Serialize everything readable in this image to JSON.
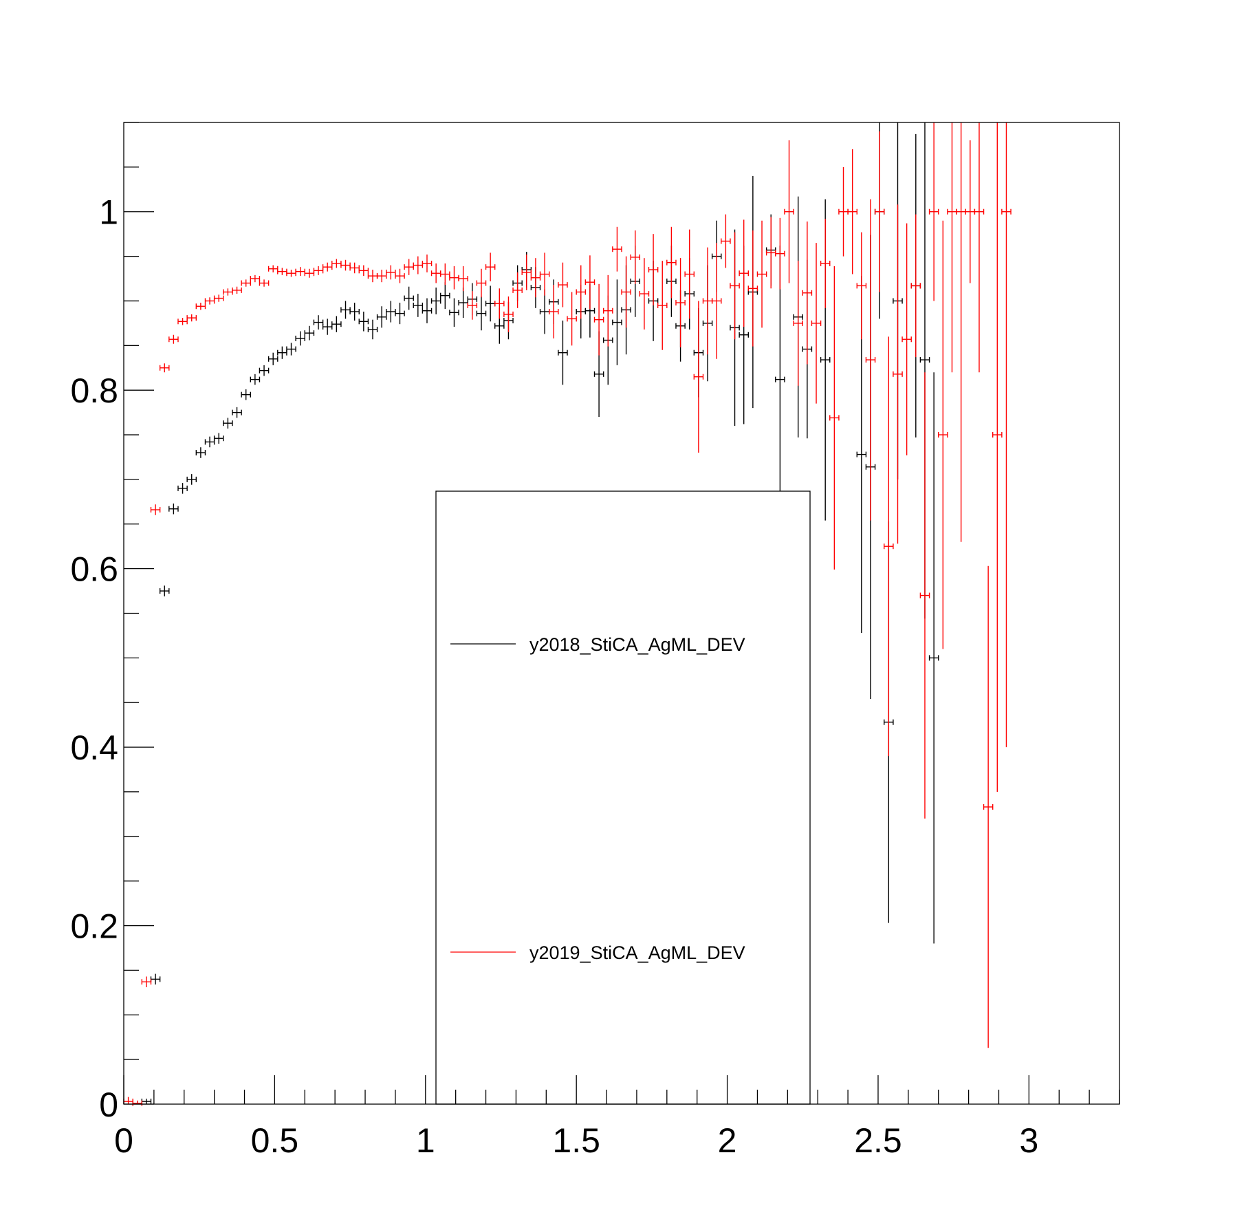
{
  "chart_data": {
    "type": "scatter",
    "title": "",
    "xlabel": "",
    "ylabel": "",
    "xlim": [
      0,
      3.3
    ],
    "ylim": [
      0,
      1.1
    ],
    "x_ticks": [
      0,
      0.5,
      1,
      1.5,
      2,
      2.5,
      3
    ],
    "x_tick_labels": [
      "0",
      "0.5",
      "1",
      "1.5",
      "2",
      "2.5",
      "3"
    ],
    "y_ticks": [
      0,
      0.2,
      0.4,
      0.6,
      0.8,
      1
    ],
    "y_tick_labels": [
      "0",
      "0.2",
      "0.4",
      "0.6",
      "0.8",
      "1"
    ],
    "bin_half_width": 0.015,
    "grid": false,
    "legend_position": "center",
    "series": [
      {
        "name": "y2018_StiCA_AgML_DEV",
        "color": "#000000",
        "points": [
          [
            0.075,
            0.003,
            0.003
          ],
          [
            0.105,
            0.14,
            0.006
          ],
          [
            0.135,
            0.575,
            0.006
          ],
          [
            0.165,
            0.667,
            0.006
          ],
          [
            0.195,
            0.69,
            0.006
          ],
          [
            0.225,
            0.7,
            0.006
          ],
          [
            0.255,
            0.73,
            0.006
          ],
          [
            0.285,
            0.742,
            0.006
          ],
          [
            0.315,
            0.746,
            0.006
          ],
          [
            0.345,
            0.763,
            0.006
          ],
          [
            0.375,
            0.775,
            0.006
          ],
          [
            0.405,
            0.795,
            0.006
          ],
          [
            0.435,
            0.812,
            0.006
          ],
          [
            0.465,
            0.822,
            0.006
          ],
          [
            0.495,
            0.835,
            0.007
          ],
          [
            0.525,
            0.842,
            0.007
          ],
          [
            0.555,
            0.846,
            0.007
          ],
          [
            0.585,
            0.858,
            0.008
          ],
          [
            0.615,
            0.864,
            0.008
          ],
          [
            0.645,
            0.876,
            0.008
          ],
          [
            0.675,
            0.871,
            0.009
          ],
          [
            0.705,
            0.874,
            0.009
          ],
          [
            0.735,
            0.89,
            0.01
          ],
          [
            0.765,
            0.888,
            0.01
          ],
          [
            0.795,
            0.877,
            0.011
          ],
          [
            0.825,
            0.868,
            0.011
          ],
          [
            0.855,
            0.882,
            0.012
          ],
          [
            0.885,
            0.888,
            0.012
          ],
          [
            0.915,
            0.886,
            0.012
          ],
          [
            0.945,
            0.903,
            0.013
          ],
          [
            0.975,
            0.895,
            0.013
          ],
          [
            1.005,
            0.889,
            0.014
          ],
          [
            1.035,
            0.9,
            0.015
          ],
          [
            1.065,
            0.906,
            0.015
          ],
          [
            1.095,
            0.887,
            0.016
          ],
          [
            1.125,
            0.898,
            0.017
          ],
          [
            1.155,
            0.902,
            0.018
          ],
          [
            1.185,
            0.886,
            0.019
          ],
          [
            1.215,
            0.897,
            0.02
          ],
          [
            1.245,
            0.872,
            0.02
          ],
          [
            1.275,
            0.878,
            0.021
          ],
          [
            1.305,
            0.92,
            0.02
          ],
          [
            1.335,
            0.935,
            0.02
          ],
          [
            1.365,
            0.915,
            0.023
          ],
          [
            1.395,
            0.888,
            0.025
          ],
          [
            1.425,
            0.899,
            0.025
          ],
          [
            1.455,
            0.842,
            0.036
          ],
          [
            1.515,
            0.888,
            0.03
          ],
          [
            1.545,
            0.889,
            0.03
          ],
          [
            1.575,
            0.818,
            0.048
          ],
          [
            1.605,
            0.856,
            0.05
          ],
          [
            1.635,
            0.876,
            0.048
          ],
          [
            1.665,
            0.89,
            0.05
          ],
          [
            1.695,
            0.922,
            0.04
          ],
          [
            1.755,
            0.9,
            0.045
          ],
          [
            1.815,
            0.922,
            0.04
          ],
          [
            1.845,
            0.872,
            0.04
          ],
          [
            1.875,
            0.908,
            0.04
          ],
          [
            1.905,
            0.842,
            0.05
          ],
          [
            1.935,
            0.875,
            0.065
          ],
          [
            1.965,
            0.95,
            0.04
          ],
          [
            2.025,
            0.87,
            0.11
          ],
          [
            2.055,
            0.862,
            0.1
          ],
          [
            2.085,
            0.91,
            0.13
          ],
          [
            2.145,
            0.957,
            0.04
          ],
          [
            2.175,
            0.812,
            0.15
          ],
          [
            2.235,
            0.882,
            0.135
          ],
          [
            2.265,
            0.846,
            0.1
          ],
          [
            2.325,
            0.834,
            0.18
          ],
          [
            2.445,
            0.728,
            0.2
          ],
          [
            2.475,
            0.714,
            0.26
          ],
          [
            2.505,
            1.0,
            0.12
          ],
          [
            2.535,
            0.428,
            0.225
          ],
          [
            2.565,
            0.9,
            0.2
          ],
          [
            2.625,
            0.917,
            0.17
          ],
          [
            2.655,
            0.834,
            0.29
          ],
          [
            2.685,
            0.5,
            0.32
          ]
        ]
      },
      {
        "name": "y2019_StiCA_AgML_DEV",
        "color": "#ff0000",
        "points": [
          [
            0.015,
            0.003,
            0.005
          ],
          [
            0.045,
            0.001,
            0.003
          ],
          [
            0.075,
            0.137,
            0.006
          ],
          [
            0.105,
            0.666,
            0.006
          ],
          [
            0.135,
            0.825,
            0.005
          ],
          [
            0.165,
            0.857,
            0.005
          ],
          [
            0.195,
            0.877,
            0.004
          ],
          [
            0.225,
            0.881,
            0.004
          ],
          [
            0.255,
            0.894,
            0.004
          ],
          [
            0.285,
            0.9,
            0.004
          ],
          [
            0.315,
            0.903,
            0.004
          ],
          [
            0.345,
            0.91,
            0.004
          ],
          [
            0.375,
            0.912,
            0.004
          ],
          [
            0.405,
            0.92,
            0.004
          ],
          [
            0.435,
            0.925,
            0.004
          ],
          [
            0.465,
            0.92,
            0.004
          ],
          [
            0.495,
            0.936,
            0.004
          ],
          [
            0.525,
            0.933,
            0.004
          ],
          [
            0.555,
            0.931,
            0.004
          ],
          [
            0.585,
            0.933,
            0.005
          ],
          [
            0.615,
            0.931,
            0.005
          ],
          [
            0.645,
            0.934,
            0.005
          ],
          [
            0.675,
            0.938,
            0.005
          ],
          [
            0.705,
            0.942,
            0.005
          ],
          [
            0.735,
            0.94,
            0.006
          ],
          [
            0.765,
            0.937,
            0.006
          ],
          [
            0.795,
            0.934,
            0.006
          ],
          [
            0.825,
            0.928,
            0.007
          ],
          [
            0.855,
            0.928,
            0.007
          ],
          [
            0.885,
            0.932,
            0.008
          ],
          [
            0.915,
            0.928,
            0.008
          ],
          [
            0.945,
            0.938,
            0.009
          ],
          [
            0.975,
            0.94,
            0.01
          ],
          [
            1.005,
            0.942,
            0.01
          ],
          [
            1.035,
            0.931,
            0.011
          ],
          [
            1.065,
            0.93,
            0.012
          ],
          [
            1.095,
            0.926,
            0.013
          ],
          [
            1.125,
            0.925,
            0.014
          ],
          [
            1.155,
            0.895,
            0.016
          ],
          [
            1.185,
            0.92,
            0.016
          ],
          [
            1.215,
            0.938,
            0.016
          ],
          [
            1.245,
            0.897,
            0.017
          ],
          [
            1.275,
            0.885,
            0.02
          ],
          [
            1.305,
            0.912,
            0.02
          ],
          [
            1.335,
            0.932,
            0.02
          ],
          [
            1.365,
            0.926,
            0.022
          ],
          [
            1.395,
            0.93,
            0.024
          ],
          [
            1.425,
            0.888,
            0.03
          ],
          [
            1.455,
            0.918,
            0.025
          ],
          [
            1.485,
            0.88,
            0.03
          ],
          [
            1.515,
            0.91,
            0.03
          ],
          [
            1.545,
            0.921,
            0.03
          ],
          [
            1.575,
            0.879,
            0.04
          ],
          [
            1.605,
            0.889,
            0.04
          ],
          [
            1.635,
            0.958,
            0.025
          ],
          [
            1.665,
            0.91,
            0.04
          ],
          [
            1.695,
            0.949,
            0.03
          ],
          [
            1.725,
            0.908,
            0.04
          ],
          [
            1.755,
            0.935,
            0.04
          ],
          [
            1.785,
            0.895,
            0.05
          ],
          [
            1.815,
            0.943,
            0.04
          ],
          [
            1.845,
            0.898,
            0.05
          ],
          [
            1.875,
            0.93,
            0.05
          ],
          [
            1.905,
            0.815,
            0.085
          ],
          [
            1.935,
            0.9,
            0.06
          ],
          [
            1.965,
            0.9,
            0.065
          ],
          [
            1.995,
            0.967,
            0.03
          ],
          [
            2.025,
            0.917,
            0.06
          ],
          [
            2.055,
            0.931,
            0.06
          ],
          [
            2.085,
            0.914,
            0.065
          ],
          [
            2.115,
            0.93,
            0.06
          ],
          [
            2.145,
            0.954,
            0.04
          ],
          [
            2.175,
            0.953,
            0.04
          ],
          [
            2.205,
            1.0,
            0.08
          ],
          [
            2.235,
            0.875,
            0.07
          ],
          [
            2.265,
            0.909,
            0.08
          ],
          [
            2.295,
            0.875,
            0.09
          ],
          [
            2.325,
            0.942,
            0.05
          ],
          [
            2.355,
            0.769,
            0.17
          ],
          [
            2.385,
            1.0,
            0.05
          ],
          [
            2.415,
            1.0,
            0.07
          ],
          [
            2.445,
            0.917,
            0.06
          ],
          [
            2.475,
            0.834,
            0.18
          ],
          [
            2.505,
            1.0,
            0.09
          ],
          [
            2.535,
            0.625,
            0.235
          ],
          [
            2.565,
            0.818,
            0.19
          ],
          [
            2.595,
            0.857,
            0.13
          ],
          [
            2.625,
            0.917,
            0.08
          ],
          [
            2.655,
            0.57,
            0.25
          ],
          [
            2.685,
            1.0,
            0.1
          ],
          [
            2.715,
            0.75,
            0.24
          ],
          [
            2.745,
            1.0,
            0.18
          ],
          [
            2.775,
            1.0,
            0.37
          ],
          [
            2.805,
            1.0,
            0.08
          ],
          [
            2.835,
            1.0,
            0.18
          ],
          [
            2.865,
            0.333,
            0.27
          ],
          [
            2.895,
            0.75,
            0.4
          ],
          [
            2.925,
            1.0,
            0.6
          ]
        ]
      }
    ]
  }
}
